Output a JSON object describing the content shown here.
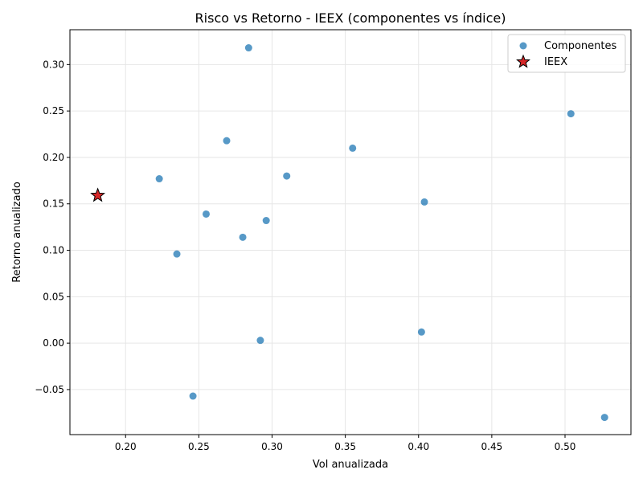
{
  "chart_data": {
    "type": "scatter",
    "title": "Risco vs Retorno - IEEX (componentes vs índice)",
    "xlabel": "Vol anualizada",
    "ylabel": "Retorno anualizado",
    "xlim": [
      0.162,
      0.545
    ],
    "ylim": [
      -0.0985,
      0.3375
    ],
    "xticks": [
      0.2,
      0.25,
      0.3,
      0.35,
      0.4,
      0.45,
      0.5
    ],
    "xtick_labels": [
      "0.20",
      "0.25",
      "0.30",
      "0.35",
      "0.40",
      "0.45",
      "0.50"
    ],
    "yticks": [
      -0.05,
      0.0,
      0.05,
      0.1,
      0.15,
      0.2,
      0.25,
      0.3
    ],
    "ytick_labels": [
      "−0.05",
      "0.00",
      "0.05",
      "0.10",
      "0.15",
      "0.20",
      "0.25",
      "0.30"
    ],
    "grid": true,
    "legend_position": "top-right",
    "series": [
      {
        "name": "Componentes",
        "marker": "circle",
        "color": "#1f77b4",
        "points": [
          {
            "x": 0.284,
            "y": 0.318
          },
          {
            "x": 0.504,
            "y": 0.247
          },
          {
            "x": 0.269,
            "y": 0.218
          },
          {
            "x": 0.355,
            "y": 0.21
          },
          {
            "x": 0.31,
            "y": 0.18
          },
          {
            "x": 0.223,
            "y": 0.177
          },
          {
            "x": 0.404,
            "y": 0.152
          },
          {
            "x": 0.255,
            "y": 0.139
          },
          {
            "x": 0.296,
            "y": 0.132
          },
          {
            "x": 0.28,
            "y": 0.114
          },
          {
            "x": 0.235,
            "y": 0.096
          },
          {
            "x": 0.402,
            "y": 0.012
          },
          {
            "x": 0.292,
            "y": 0.003
          },
          {
            "x": 0.246,
            "y": -0.057
          },
          {
            "x": 0.527,
            "y": -0.08
          }
        ]
      },
      {
        "name": "IEEX",
        "marker": "star",
        "color": "#d62728",
        "points": [
          {
            "x": 0.181,
            "y": 0.159
          }
        ]
      }
    ]
  }
}
